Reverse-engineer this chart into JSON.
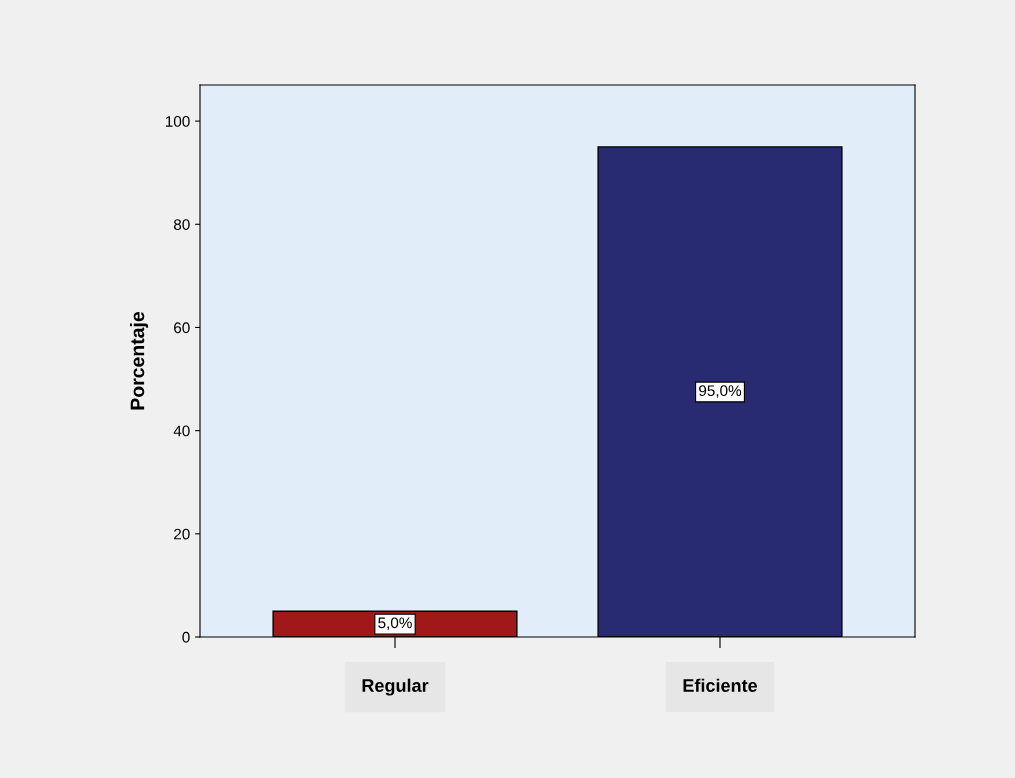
{
  "chart_data": {
    "type": "bar",
    "ylabel": "Porcentaje",
    "categories": [
      "Regular",
      "Eficiente"
    ],
    "values": [
      5.0,
      95.0
    ],
    "value_labels": [
      "5,0%",
      "95,0%"
    ],
    "colors": [
      "#a01818",
      "#282a72"
    ],
    "ylim": [
      0,
      107
    ],
    "yticks": [
      0,
      20,
      40,
      60,
      80,
      100
    ],
    "grid": false
  }
}
